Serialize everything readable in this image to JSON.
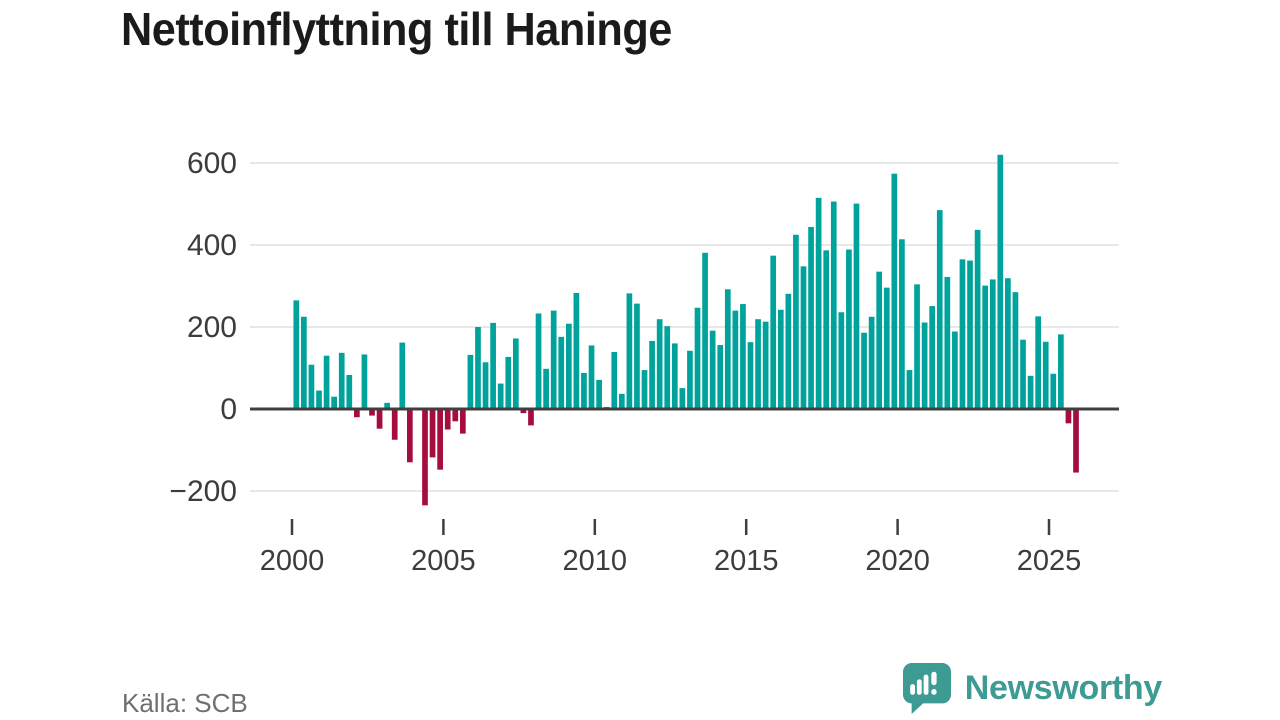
{
  "title": "Nettoinflyttning till Haninge",
  "source": "Källa: SCB",
  "branding": {
    "name": "Newsworthy",
    "icon": "newsworthy-chart-bubble-icon"
  },
  "colors": {
    "positive": "#00a39b",
    "negative": "#a50d3d",
    "grid": "#e8e8e8",
    "zero_axis": "#3f3f3f",
    "tick": "#3f3f3f",
    "tick_text": "#3c3c3c",
    "title_text": "#1b1b1b",
    "source_text": "#6f6f6f",
    "brand": "#3d9b94",
    "background": "#ffffff"
  },
  "chart_data": {
    "type": "bar",
    "title": "Nettoinflyttning till Haninge",
    "xlabel": "",
    "ylabel": "",
    "x_unit": "quarter",
    "start_year": 2000,
    "quarters_per_year": 4,
    "ylim": [
      -260,
      660
    ],
    "grid": "horizontal",
    "legend": "none",
    "yticks": [
      600,
      400,
      200,
      0,
      -200
    ],
    "ytick_labels": [
      "600",
      "400",
      "200",
      "0",
      "−200"
    ],
    "xticks": [
      2000,
      2005,
      2010,
      2015,
      2020,
      2025
    ],
    "xtick_labels": [
      "2000",
      "2005",
      "2010",
      "2015",
      "2020",
      "2025"
    ],
    "series": [
      {
        "name": "Nettoinflyttning",
        "values": [
          265,
          225,
          108,
          45,
          130,
          30,
          137,
          83,
          -20,
          133,
          -16,
          -48,
          15,
          -75,
          162,
          -130,
          3,
          -235,
          -118,
          -148,
          -50,
          -30,
          -60,
          132,
          200,
          114,
          210,
          62,
          127,
          172,
          -10,
          -40,
          233,
          98,
          240,
          176,
          208,
          283,
          88,
          155,
          71,
          5,
          139,
          37,
          282,
          257,
          95,
          166,
          219,
          202,
          160,
          51,
          142,
          247,
          381,
          191,
          156,
          292,
          240,
          256,
          163,
          219,
          213,
          374,
          242,
          281,
          425,
          348,
          444,
          515,
          387,
          506,
          236,
          389,
          501,
          186,
          225,
          335,
          296,
          574,
          414,
          95,
          304,
          211,
          251,
          485,
          322,
          189,
          365,
          362,
          437,
          301,
          316,
          620,
          319,
          285,
          169,
          81,
          226,
          164,
          86,
          182,
          -35,
          -155
        ]
      }
    ]
  }
}
